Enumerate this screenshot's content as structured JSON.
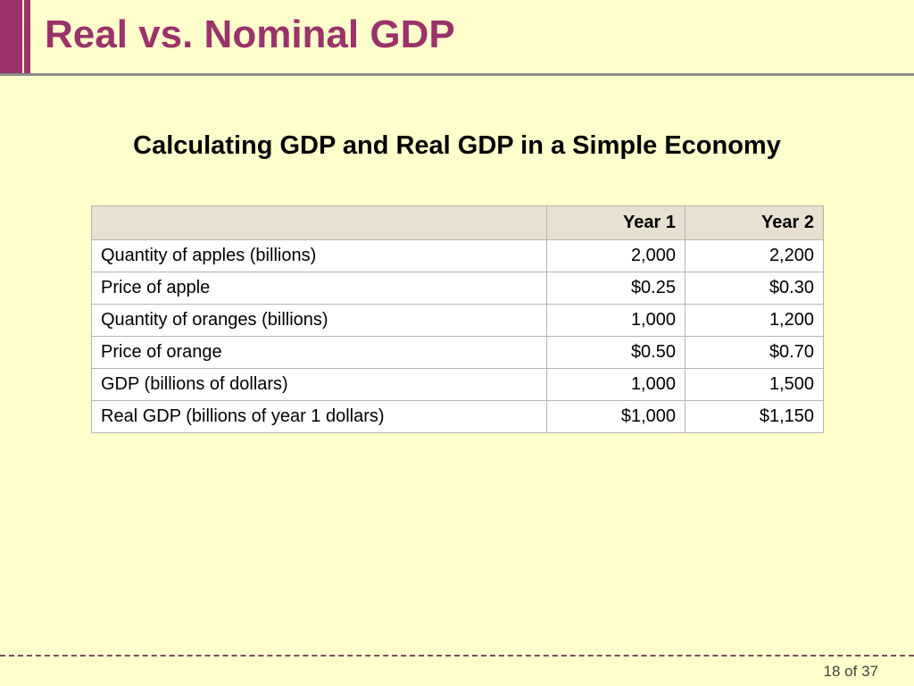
{
  "slide": {
    "title": "Real vs. Nominal GDP",
    "subtitle": "Calculating GDP and Real GDP in a Simple Economy",
    "page": "18 of 37"
  },
  "table": {
    "headers": [
      "",
      "Year 1",
      "Year 2"
    ],
    "rows": [
      {
        "label": "Quantity of apples (billions)",
        "year1": "2,000",
        "year2": "2,200"
      },
      {
        "label": "Price of apple",
        "year1": "$0.25",
        "year2": "$0.30"
      },
      {
        "label": "Quantity of oranges (billions)",
        "year1": "1,000",
        "year2": "1,200"
      },
      {
        "label": "Price of orange",
        "year1": "$0.50",
        "year2": "$0.70"
      },
      {
        "label": "GDP (billions of dollars)",
        "year1": "1,000",
        "year2": "1,500"
      },
      {
        "label": "Real GDP (billions of year 1 dollars)",
        "year1": "$1,000",
        "year2": "$1,150"
      }
    ]
  },
  "colors": {
    "background": "#FFFFCC",
    "accent": "#99336A",
    "header_fill": "#E8E0D0"
  }
}
